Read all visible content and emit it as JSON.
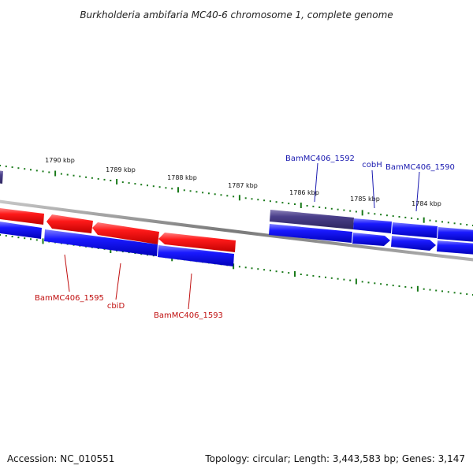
{
  "title": "Burkholderia ambifaria MC40-6 chromosome 1, complete genome",
  "footer": {
    "accession": "Accession: NC_010551",
    "summary": "Topology: circular; Length: 3,443,583 bp; Genes: 3,147"
  },
  "colors": {
    "forward_strand": "#1a1aff",
    "reverse_strand": "#ff1a1a",
    "selected_gene": "#4a3f8a",
    "tick_marks": "#1a7a1a",
    "backbone": "#8a8a8a",
    "forward_label": "#1a1ab0",
    "reverse_label": "#c01010"
  },
  "scale_ticks": [
    "1790 kbp",
    "1789 kbp",
    "1788 kbp",
    "1787 kbp",
    "1786 kbp",
    "1785 kbp",
    "1784 kbp"
  ],
  "gene_labels": {
    "top": [
      "BamMC406_1592",
      "cobH",
      "BamMC406_1590"
    ],
    "bottom": [
      "BamMC406_1595",
      "cbiD",
      "BamMC406_1593"
    ]
  }
}
